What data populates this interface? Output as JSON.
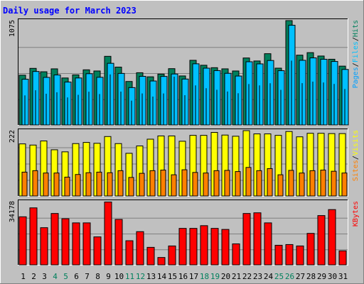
{
  "title": "Daily usage for March 2023",
  "colors": {
    "background": "#c0c0c0",
    "plot_background": "#c0c0c0",
    "title": "#0000ff",
    "hits": "#00805c",
    "files": "#00c0ff",
    "pages": "#00a0ff",
    "visits": "#ffff00",
    "sites": "#ff8000",
    "kbytes": "#ff0000",
    "weekend_label": "#00805c",
    "weekday_label": "#000000"
  },
  "chart_data": [
    {
      "type": "bar",
      "name": "hits-files-pages",
      "categories": [
        "1",
        "2",
        "3",
        "4",
        "5",
        "6",
        "7",
        "8",
        "9",
        "10",
        "11",
        "12",
        "13",
        "14",
        "15",
        "16",
        "17",
        "18",
        "19",
        "20",
        "21",
        "22",
        "23",
        "24",
        "25",
        "26",
        "27",
        "28",
        "29",
        "30",
        "31"
      ],
      "ymax_label": "1075",
      "ylim": [
        0,
        1075
      ],
      "legend": [
        "Pages",
        "Files",
        "Hits"
      ],
      "series": [
        {
          "name": "Hits",
          "values": [
            513,
            583,
            548,
            578,
            484,
            516,
            568,
            556,
            707,
            596,
            448,
            538,
            496,
            524,
            580,
            505,
            666,
            615,
            590,
            578,
            556,
            690,
            659,
            734,
            585,
            1075,
            719,
            745,
            710,
            677,
            606
          ]
        },
        {
          "name": "Files",
          "values": [
            471,
            551,
            490,
            515,
            442,
            484,
            528,
            491,
            635,
            531,
            385,
            501,
            453,
            500,
            525,
            473,
            630,
            585,
            560,
            532,
            504,
            651,
            629,
            664,
            559,
            1027,
            666,
            691,
            677,
            654,
            572
          ]
        },
        {
          "name": "Pages",
          "values": [
            301,
            354,
            318,
            333,
            280,
            307,
            339,
            315,
            517,
            340,
            247,
            321,
            289,
            321,
            494,
            303,
            404,
            375,
            359,
            341,
            323,
            418,
            404,
            426,
            358,
            659,
            427,
            443,
            434,
            419,
            367
          ]
        }
      ]
    },
    {
      "type": "bar",
      "name": "visits-sites",
      "categories": [
        "1",
        "2",
        "3",
        "4",
        "5",
        "6",
        "7",
        "8",
        "9",
        "10",
        "11",
        "12",
        "13",
        "14",
        "15",
        "16",
        "17",
        "18",
        "19",
        "20",
        "21",
        "22",
        "23",
        "24",
        "25",
        "26",
        "27",
        "28",
        "29",
        "30",
        "31"
      ],
      "ymax_label": "222",
      "ylim": [
        0,
        222
      ],
      "legend": [
        "Sites",
        "Visits"
      ],
      "series": [
        {
          "name": "Visits",
          "values": [
            177,
            173,
            187,
            157,
            150,
            178,
            182,
            179,
            202,
            178,
            145,
            170,
            193,
            204,
            204,
            186,
            206,
            206,
            216,
            207,
            203,
            222,
            211,
            211,
            206,
            219,
            201,
            213,
            213,
            212,
            212
          ]
        },
        {
          "name": "Sites",
          "values": [
            81,
            86,
            78,
            78,
            64,
            73,
            79,
            81,
            79,
            86,
            63,
            77,
            86,
            88,
            72,
            89,
            80,
            78,
            86,
            87,
            83,
            97,
            86,
            93,
            72,
            87,
            78,
            86,
            88,
            84,
            78
          ]
        }
      ]
    },
    {
      "type": "bar",
      "name": "kbytes",
      "categories": [
        "1",
        "2",
        "3",
        "4",
        "5",
        "6",
        "7",
        "8",
        "9",
        "10",
        "11",
        "12",
        "13",
        "14",
        "15",
        "16",
        "17",
        "18",
        "19",
        "20",
        "21",
        "22",
        "23",
        "24",
        "25",
        "26",
        "27",
        "28",
        "29",
        "30",
        "31"
      ],
      "ymax_label": "34178",
      "ylim": [
        0,
        34178
      ],
      "legend": [
        "KBytes"
      ],
      "series": [
        {
          "name": "KBytes",
          "values": [
            25990,
            30818,
            20098,
            27776,
            24944,
            22700,
            22700,
            15118,
            33994,
            24566,
            13040,
            17954,
            9458,
            3976,
            10214,
            19720,
            19720,
            21188,
            19720,
            19152,
            11348,
            27776,
            28144,
            22700,
            10590,
            10970,
            10214,
            17012,
            26644,
            29880,
            7568
          ]
        }
      ]
    }
  ],
  "x_labels": [
    {
      "label": "1",
      "weekend": false
    },
    {
      "label": "2",
      "weekend": false
    },
    {
      "label": "3",
      "weekend": false
    },
    {
      "label": "4",
      "weekend": true
    },
    {
      "label": "5",
      "weekend": true
    },
    {
      "label": "6",
      "weekend": false
    },
    {
      "label": "7",
      "weekend": false
    },
    {
      "label": "8",
      "weekend": false
    },
    {
      "label": "9",
      "weekend": false
    },
    {
      "label": "10",
      "weekend": false
    },
    {
      "label": "11",
      "weekend": true
    },
    {
      "label": "12",
      "weekend": true
    },
    {
      "label": "13",
      "weekend": false
    },
    {
      "label": "14",
      "weekend": false
    },
    {
      "label": "15",
      "weekend": false
    },
    {
      "label": "16",
      "weekend": false
    },
    {
      "label": "17",
      "weekend": false
    },
    {
      "label": "18",
      "weekend": true
    },
    {
      "label": "19",
      "weekend": true
    },
    {
      "label": "20",
      "weekend": false
    },
    {
      "label": "21",
      "weekend": false
    },
    {
      "label": "22",
      "weekend": false
    },
    {
      "label": "23",
      "weekend": false
    },
    {
      "label": "24",
      "weekend": false
    },
    {
      "label": "25",
      "weekend": true
    },
    {
      "label": "26",
      "weekend": true
    },
    {
      "label": "27",
      "weekend": false
    },
    {
      "label": "28",
      "weekend": false
    },
    {
      "label": "29",
      "weekend": false
    },
    {
      "label": "30",
      "weekend": false
    },
    {
      "label": "31",
      "weekend": false
    }
  ],
  "legend_separator": "/"
}
